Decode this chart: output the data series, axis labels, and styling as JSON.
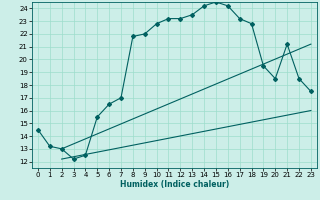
{
  "title": "",
  "xlabel": "Humidex (Indice chaleur)",
  "xlim": [
    -0.5,
    23.5
  ],
  "ylim": [
    11.5,
    24.5
  ],
  "xticks": [
    0,
    1,
    2,
    3,
    4,
    5,
    6,
    7,
    8,
    9,
    10,
    11,
    12,
    13,
    14,
    15,
    16,
    17,
    18,
    19,
    20,
    21,
    22,
    23
  ],
  "yticks": [
    12,
    13,
    14,
    15,
    16,
    17,
    18,
    19,
    20,
    21,
    22,
    23,
    24
  ],
  "bg_color": "#cceee8",
  "grid_color": "#aaddcc",
  "line_color": "#006060",
  "line1_x": [
    0,
    1,
    2,
    3,
    4,
    5,
    6,
    7,
    8,
    9,
    10,
    11,
    12,
    13,
    14,
    15,
    16,
    17,
    18,
    19,
    20,
    21,
    22,
    23
  ],
  "line1_y": [
    14.5,
    13.2,
    13.0,
    12.2,
    12.5,
    15.5,
    16.5,
    17.0,
    21.8,
    22.0,
    22.8,
    23.2,
    23.2,
    23.5,
    24.2,
    24.5,
    24.2,
    23.2,
    22.8,
    19.5,
    18.5,
    21.2,
    18.5,
    17.5
  ],
  "line2_x": [
    2,
    23
  ],
  "line2_y": [
    13.0,
    21.2
  ],
  "line3_x": [
    2,
    23
  ],
  "line3_y": [
    12.2,
    16.0
  ],
  "marker": "D",
  "markersize": 2.0,
  "linewidth": 0.8,
  "tick_fontsize": 5.0,
  "xlabel_fontsize": 5.5
}
